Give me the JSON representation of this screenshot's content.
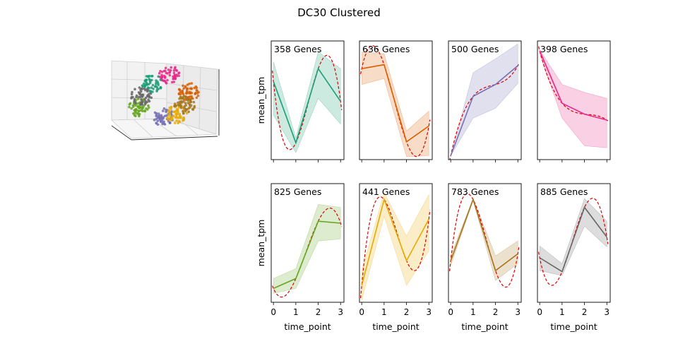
{
  "figure": {
    "title": "DC30 Clustered"
  },
  "chart_data": {
    "type": "line",
    "x": [
      0,
      1,
      2,
      3
    ],
    "xlabel": "time_point",
    "ylabel": "mean_tpm",
    "xticks": [
      "0",
      "1",
      "2",
      "3"
    ],
    "fit_style": "red dashed",
    "band": "shaded range",
    "panels": [
      {
        "label": "358 Genes",
        "color": "#1b9e77",
        "mean": [
          0.67,
          0.05,
          0.8,
          0.47
        ],
        "upper": [
          0.87,
          0.1,
          0.97,
          0.8
        ],
        "lower": [
          0.33,
          -0.05,
          0.5,
          0.24
        ],
        "fit": [
          0.67,
          0.05,
          0.8,
          0.47
        ]
      },
      {
        "label": "636 Genes",
        "color": "#d95f02",
        "mean": [
          0.8,
          0.84,
          0.06,
          0.22
        ],
        "upper": [
          0.97,
          0.95,
          0.17,
          0.37
        ],
        "lower": [
          0.64,
          0.7,
          -0.09,
          -0.08
        ],
        "fit": [
          0.8,
          0.84,
          0.06,
          0.22
        ]
      },
      {
        "label": "500 Genes",
        "color": "#7570b3",
        "mean": [
          -0.08,
          0.52,
          0.64,
          0.83
        ],
        "upper": [
          -0.08,
          0.76,
          0.9,
          1.05
        ],
        "lower": [
          -0.08,
          0.3,
          0.4,
          0.65
        ],
        "fit": [
          -0.08,
          0.52,
          0.64,
          0.83
        ]
      },
      {
        "label": "398 Genes",
        "color": "#e7298a",
        "mean": [
          0.98,
          0.45,
          0.34,
          0.28
        ],
        "upper": [
          0.99,
          0.64,
          0.56,
          0.5
        ],
        "lower": [
          0.95,
          0.3,
          0.02,
          0.0
        ],
        "fit": [
          0.98,
          0.45,
          0.34,
          0.28
        ]
      },
      {
        "label": "825 Genes",
        "color": "#66a61e",
        "mean": [
          0.02,
          0.12,
          0.7,
          0.68
        ],
        "upper": [
          0.12,
          0.22,
          0.87,
          0.84
        ],
        "lower": [
          -0.03,
          0.02,
          0.5,
          0.52
        ],
        "fit": [
          0.02,
          0.12,
          0.7,
          0.68
        ]
      },
      {
        "label": "441 Genes",
        "color": "#e6ab02",
        "mean": [
          0.05,
          0.92,
          0.3,
          0.72
        ],
        "upper": [
          0.2,
          0.99,
          0.55,
          0.97
        ],
        "lower": [
          -0.1,
          0.75,
          0.05,
          0.4
        ],
        "fit": [
          0.05,
          0.92,
          0.3,
          0.72
        ]
      },
      {
        "label": "783 Genes",
        "color": "#a6761d",
        "mean": [
          0.3,
          0.92,
          0.2,
          0.37
        ],
        "upper": [
          0.35,
          0.93,
          0.35,
          0.5
        ],
        "lower": [
          0.25,
          0.91,
          0.1,
          0.27
        ],
        "fit": [
          0.3,
          0.92,
          0.2,
          0.37
        ]
      },
      {
        "label": "885 Genes",
        "color": "#666666",
        "mean": [
          0.33,
          0.19,
          0.84,
          0.54
        ],
        "upper": [
          0.45,
          0.27,
          0.93,
          0.7
        ],
        "lower": [
          0.2,
          0.15,
          0.65,
          0.44
        ],
        "fit": [
          0.33,
          0.19,
          0.84,
          0.54
        ]
      }
    ]
  },
  "scatter3d": {
    "cluster_colors": [
      "#1b9e77",
      "#d95f02",
      "#7570b3",
      "#e7298a",
      "#66a61e",
      "#e6ab02",
      "#a6761d",
      "#666666"
    ]
  }
}
